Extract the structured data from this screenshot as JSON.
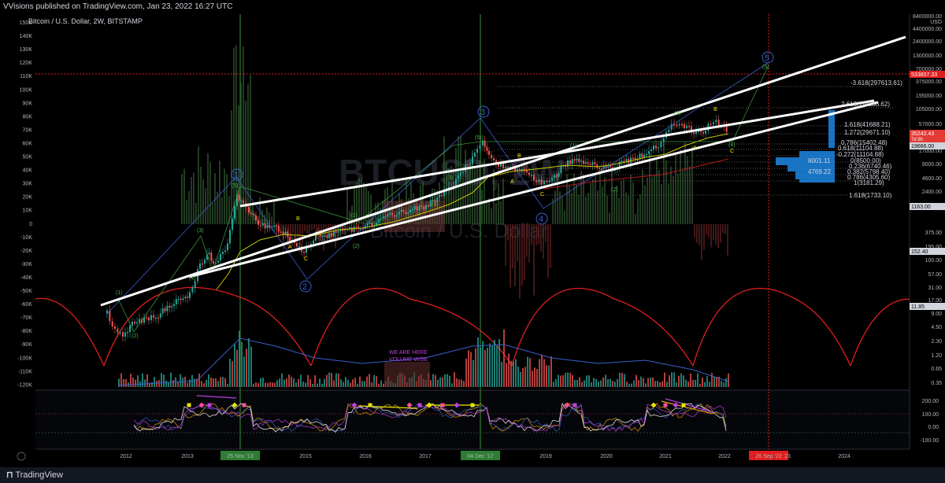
{
  "header": {
    "published": "VVisions published on TradingView.com, Jan 23, 2022 16:27 UTC",
    "symbol": "Bitcoin / U.S. Dollar, 2W, BITSTAMP"
  },
  "watermark": {
    "ticker": "BTCUSD, 2W",
    "name": "Bitcoin / U.S. Dollar"
  },
  "left_axis": [
    "150K",
    "140K",
    "130K",
    "120K",
    "110K",
    "100K",
    "90K",
    "80K",
    "70K",
    "60K",
    "50K",
    "40K",
    "30K",
    "20K",
    "10K",
    "0",
    "-10K",
    "-20K",
    "-30K",
    "-40K",
    "-50K",
    "-60K",
    "-70K",
    "-80K",
    "-90K",
    "-100K",
    "-110K",
    "-120K"
  ],
  "right_axis": [
    "8400000.00",
    "USD",
    "4400000.00",
    "2400000.00",
    "1300000.00",
    "700000.00",
    "375000.00",
    "195000.00",
    "105000.00",
    "57000.00",
    "31000.00",
    "17000.00",
    "9000.00",
    "4600.00",
    "2400.00",
    "1163.00",
    "375.00",
    "195.00",
    "100.00",
    "57.00",
    "31.00",
    "17.00",
    "9.00",
    "4.50",
    "2.30",
    "1.20",
    "0.65",
    "0.35"
  ],
  "price_tags": {
    "red_top": "533857.33",
    "current": "35242.43",
    "countdown": "7d 8h",
    "level_19666": "19666.00",
    "level_1163": "1163.00",
    "level_152": "152.40",
    "level_11": "11.85"
  },
  "osc_axis": [
    "200.00",
    "100.00",
    "0.00",
    "-100.00"
  ],
  "time_axis": [
    "2012",
    "2013",
    "25 Nov '13",
    "2015",
    "2016",
    "2017",
    "04 Dec '17",
    "2019",
    "2020",
    "2021",
    "2022",
    "26 Sep '22",
    "23",
    "2024"
  ],
  "fib_labels": [
    "-3.618(297613.61)",
    "2.618(111386.62)",
    "1.618(41688.21)",
    "1.272(29671.10)",
    "0.786(15402.48)",
    "0.618(11104.88)",
    "-0.272(11104.88)",
    "0(8500.00)",
    "0.236(6740.46)",
    "0.382(5798.40)",
    "0.786(4305.60)",
    "1(3181.29)",
    "1.618(1733.10)",
    "8001.11",
    "4769.22"
  ],
  "waves_blue": [
    "1",
    "2",
    "3",
    "4",
    "5"
  ],
  "waves_green": [
    "(1)",
    "(2)",
    "(3)",
    "(4)",
    "(5)"
  ],
  "waves_abc": [
    "A",
    "B",
    "C"
  ],
  "annotation": "WE ARE HERE\nVOLUME WISE",
  "footer": {
    "brand": "TradingView"
  },
  "colors": {
    "background": "#000000",
    "trendline": "#ffffff",
    "cycle_arcs": "#e01e1e",
    "wave_blue": "#3a5fcd",
    "wave_green": "#4caf50",
    "wave_yellow": "#e6e600",
    "candle_up": "#26a69a",
    "candle_down": "#ef5350"
  }
}
